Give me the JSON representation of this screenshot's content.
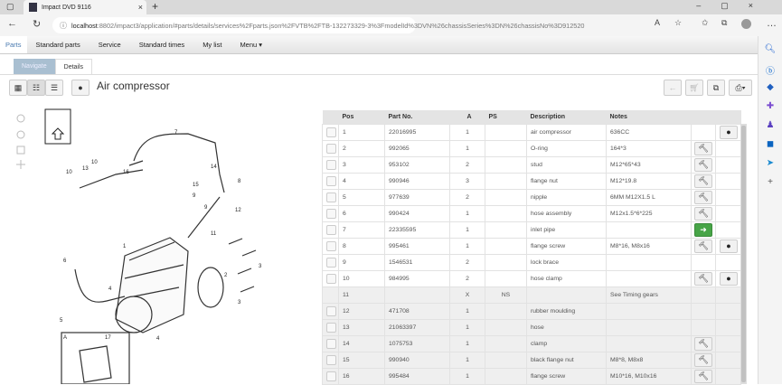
{
  "browser": {
    "tab_title": "Impact DVD 9116",
    "url_host": "localhost",
    "url_rest": ":8802/impact3/application/#parts/details/services%2Fparts.json%2FVTB%2FTB-132273329-3%3FmodelId%3DVN%26chassisSeries%3DN%26chassisNo%3D912520"
  },
  "menu": {
    "items": [
      "Parts",
      "Standard parts",
      "Service",
      "Standard times",
      "My list",
      "Menu ▾"
    ]
  },
  "subtabs": {
    "navigate": "Navigate",
    "details": "Details"
  },
  "page": {
    "title": "Air compressor"
  },
  "table": {
    "headers": [
      "",
      "Pos",
      "Part No.",
      "A",
      "PS",
      "Description",
      "Notes",
      "",
      ""
    ],
    "rows": [
      {
        "pos": "1",
        "part": "22016995",
        "a": "1",
        "ps": "",
        "desc": "air compressor",
        "notes": "636CC",
        "tool": false,
        "info": true,
        "arrow": false,
        "check": true,
        "grey": false
      },
      {
        "pos": "2",
        "part": "992065",
        "a": "1",
        "ps": "",
        "desc": "O-ring",
        "notes": "164*3",
        "tool": true,
        "info": false,
        "arrow": false,
        "check": true,
        "grey": false
      },
      {
        "pos": "3",
        "part": "953102",
        "a": "2",
        "ps": "",
        "desc": "stud",
        "notes": "M12*65*43",
        "tool": true,
        "info": false,
        "arrow": false,
        "check": true,
        "grey": false
      },
      {
        "pos": "4",
        "part": "990946",
        "a": "3",
        "ps": "",
        "desc": "flange nut",
        "notes": "M12*19.8",
        "tool": true,
        "info": false,
        "arrow": false,
        "check": true,
        "grey": false
      },
      {
        "pos": "5",
        "part": "977639",
        "a": "2",
        "ps": "",
        "desc": "nipple",
        "notes": "6MM M12X1.5 L",
        "tool": true,
        "info": false,
        "arrow": false,
        "check": true,
        "grey": false
      },
      {
        "pos": "6",
        "part": "990424",
        "a": "1",
        "ps": "",
        "desc": "hose assembly",
        "notes": "M12x1.5*6*225",
        "tool": true,
        "info": false,
        "arrow": false,
        "check": true,
        "grey": false
      },
      {
        "pos": "7",
        "part": "22335595",
        "a": "1",
        "ps": "",
        "desc": "inlet pipe",
        "notes": "",
        "tool": false,
        "info": false,
        "arrow": true,
        "check": true,
        "grey": false
      },
      {
        "pos": "8",
        "part": "995461",
        "a": "1",
        "ps": "",
        "desc": "flange screw",
        "notes": "M8*16, M8x16",
        "tool": true,
        "info": true,
        "arrow": false,
        "check": true,
        "grey": false
      },
      {
        "pos": "9",
        "part": "1546531",
        "a": "2",
        "ps": "",
        "desc": "lock brace",
        "notes": "",
        "tool": false,
        "info": false,
        "arrow": false,
        "check": true,
        "grey": false
      },
      {
        "pos": "10",
        "part": "984995",
        "a": "2",
        "ps": "",
        "desc": "hose clamp",
        "notes": "",
        "tool": true,
        "info": true,
        "arrow": false,
        "check": true,
        "grey": false
      },
      {
        "pos": "11",
        "part": "",
        "a": "X",
        "ps": "NS",
        "desc": "",
        "notes": "See Timing gears",
        "tool": false,
        "info": false,
        "arrow": false,
        "check": false,
        "grey": true
      },
      {
        "pos": "12",
        "part": "471708",
        "a": "1",
        "ps": "",
        "desc": "rubber moulding",
        "notes": "",
        "tool": false,
        "info": false,
        "arrow": false,
        "check": true,
        "grey": true
      },
      {
        "pos": "13",
        "part": "21063397",
        "a": "1",
        "ps": "",
        "desc": "hose",
        "notes": "",
        "tool": false,
        "info": false,
        "arrow": false,
        "check": true,
        "grey": true
      },
      {
        "pos": "14",
        "part": "1075753",
        "a": "1",
        "ps": "",
        "desc": "clamp",
        "notes": "",
        "tool": true,
        "info": false,
        "arrow": false,
        "check": true,
        "grey": true
      },
      {
        "pos": "15",
        "part": "990940",
        "a": "1",
        "ps": "",
        "desc": "black flange nut",
        "notes": "M8*8, M8x8",
        "tool": true,
        "info": false,
        "arrow": false,
        "check": true,
        "grey": true
      },
      {
        "pos": "16",
        "part": "995484",
        "a": "1",
        "ps": "",
        "desc": "flange screw",
        "notes": "M10*16, M10x16",
        "tool": true,
        "info": false,
        "arrow": false,
        "check": true,
        "grey": true
      }
    ]
  },
  "diagram": {
    "labels": [
      "7",
      "14",
      "10",
      "13",
      "10",
      "16",
      "15",
      "8",
      "9",
      "12",
      "9",
      "11",
      "1",
      "2",
      "3",
      "4",
      "5",
      "6",
      "4",
      "3",
      "17",
      "A"
    ]
  },
  "colors": {
    "accent": "#4a7ab0",
    "green": "#47a447",
    "navigate_tab": "#a9bfd1"
  }
}
